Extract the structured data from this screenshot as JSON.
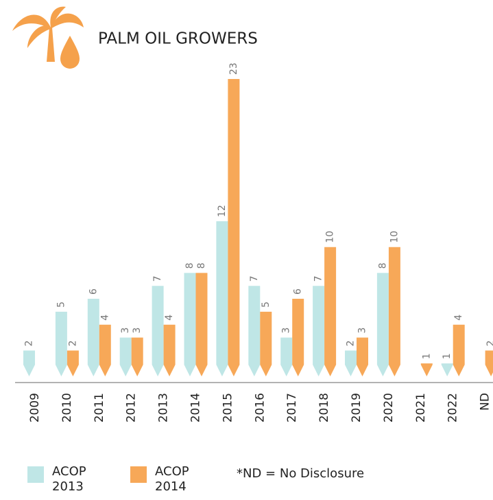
{
  "chart_data": {
    "type": "bar",
    "title": "PALM OIL GROWERS",
    "categories": [
      "2009",
      "2010",
      "2011",
      "2012",
      "2013",
      "2014",
      "2015",
      "2016",
      "2017",
      "2018",
      "2019",
      "2020",
      "2021",
      "2022",
      "ND"
    ],
    "series": [
      {
        "name": "ACOP 2013",
        "color": "#bfe6e6",
        "values": [
          2,
          5,
          6,
          3,
          7,
          8,
          12,
          7,
          3,
          7,
          2,
          8,
          null,
          1,
          null
        ]
      },
      {
        "name": "ACOP 2014",
        "color": "#f7a858",
        "values": [
          null,
          2,
          4,
          3,
          4,
          8,
          23,
          5,
          6,
          10,
          3,
          10,
          1,
          4,
          2
        ]
      }
    ],
    "annotation": "*ND = No Disclosure"
  }
}
